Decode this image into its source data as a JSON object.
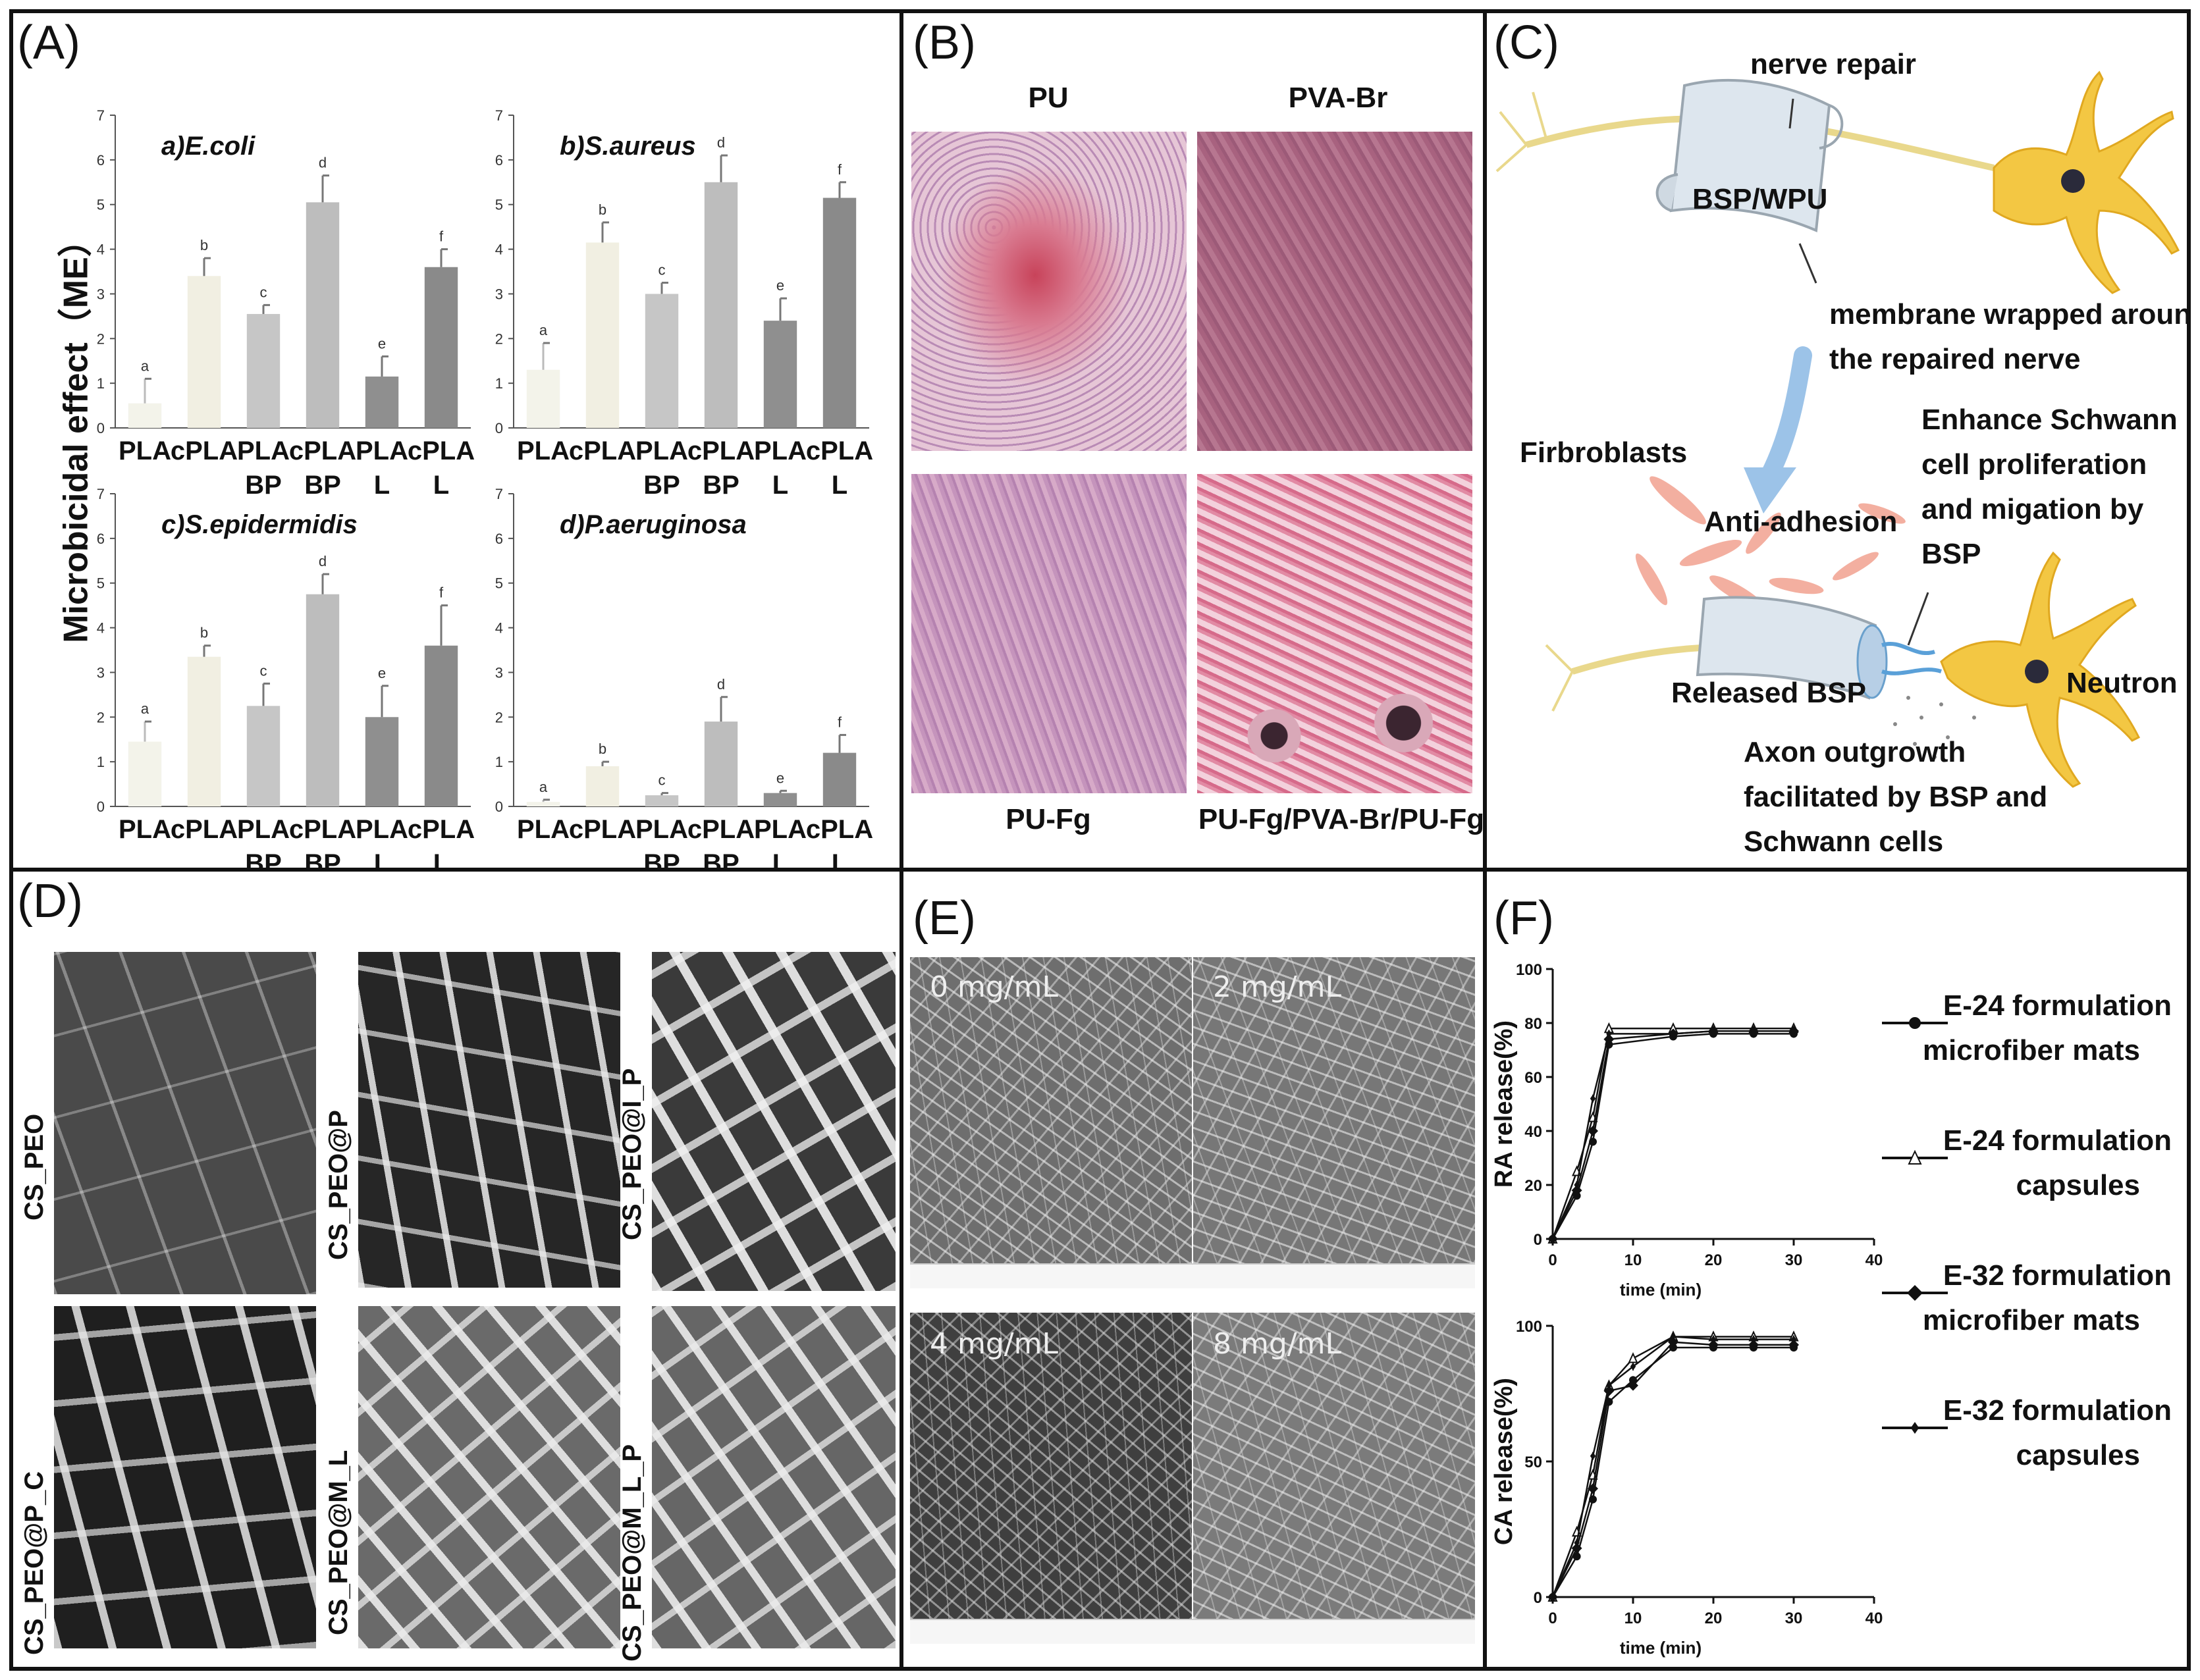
{
  "panels": {
    "A": {
      "label": "(A)",
      "ylabel": "Microbicidal effect（ME）",
      "charts": [
        {
          "title": "a)E.coli",
          "values": [
            0.55,
            3.4,
            2.55,
            5.05,
            1.15,
            3.6
          ],
          "errors": [
            0.55,
            0.4,
            0.2,
            0.6,
            0.45,
            0.4
          ],
          "letters": [
            "a",
            "b",
            "c",
            "d",
            "e",
            "f"
          ]
        },
        {
          "title": "b)S.aureus",
          "values": [
            1.3,
            4.15,
            3.0,
            5.5,
            2.4,
            5.15
          ],
          "errors": [
            0.6,
            0.45,
            0.25,
            0.6,
            0.5,
            0.35
          ],
          "letters": [
            "a",
            "b",
            "c",
            "d",
            "e",
            "f"
          ]
        },
        {
          "title": "c)S.epidermidis",
          "values": [
            1.45,
            3.35,
            2.25,
            4.75,
            2.0,
            3.6
          ],
          "errors": [
            0.45,
            0.25,
            0.5,
            0.45,
            0.7,
            0.9
          ],
          "letters": [
            "a",
            "b",
            "c",
            "d",
            "e",
            "f"
          ]
        },
        {
          "title": "d)P.aeruginosa",
          "values": [
            0.1,
            0.9,
            0.25,
            1.9,
            0.3,
            1.2
          ],
          "errors": [
            0.05,
            0.1,
            0.05,
            0.55,
            0.05,
            0.4
          ],
          "letters": [
            "a",
            "b",
            "c",
            "d",
            "e",
            "f"
          ]
        }
      ],
      "categories_top": [
        "PLA",
        "cPLA",
        "PLA",
        "cPLA",
        "PLA",
        "cPLA"
      ],
      "categories_bottom": [
        "",
        "",
        "BP",
        "BP",
        "L",
        "L"
      ],
      "yticks": [
        "0",
        "1",
        "2",
        "3",
        "4",
        "5",
        "6",
        "7"
      ]
    },
    "B": {
      "label": "(B)",
      "titles": {
        "tl": "PU",
        "tr": "PVA-Br",
        "bl": "PU-Fg",
        "br": "PU-Fg/PVA-Br/PU-Fg"
      }
    },
    "C": {
      "label": "(C)",
      "texts": {
        "nerve_repair": "nerve repair",
        "bsp_wpu": "BSP/WPU",
        "membrane1": "membrane wrapped around",
        "membrane2": "the repaired nerve",
        "fibro": "Firbroblasts",
        "anti": "Anti-adhesion",
        "enh1": "Enhance Schwann",
        "enh2": "cell proliferation",
        "enh3": "and migation by",
        "enh4": "BSP",
        "released": "Released BSP",
        "neutron": "Neutron",
        "axon1": "Axon outgrowth",
        "axon2": "facilitated by BSP and",
        "axon3": "Schwann cells"
      }
    },
    "D": {
      "label": "(D)",
      "labels": [
        "CS_PEO",
        "CS_PEO@P",
        "CS_PEO@I_P",
        "CS_PEO@P_C",
        "CS_PEO@M_L",
        "CS_PEO@M_L_P"
      ]
    },
    "E": {
      "label": "(E)",
      "conc": [
        "0 mg/mL",
        "2 mg/mL",
        "4 mg/mL",
        "8 mg/mL"
      ]
    },
    "F": {
      "label": "(F)",
      "chart_data": [
        {
          "type": "line",
          "ylabel": "RA release(%)",
          "xlabel": "time (min)",
          "xlim": [
            0,
            40
          ],
          "ylim": [
            0,
            100
          ],
          "xticks": [
            "0",
            "10",
            "20",
            "30",
            "40"
          ],
          "yticks": [
            "0",
            "20",
            "40",
            "60",
            "80",
            "100"
          ],
          "x": [
            0,
            3,
            5,
            7,
            15,
            20,
            25,
            30
          ],
          "series": [
            {
              "name": "E-24 formulation microfiber mats",
              "values": [
                0,
                16,
                36,
                72,
                75,
                76,
                76,
                76
              ]
            },
            {
              "name": "E-24 formulation capsules",
              "values": [
                0,
                25,
                45,
                78,
                78,
                78,
                78,
                78
              ]
            },
            {
              "name": "E-32 formulation microfiber mats",
              "values": [
                0,
                18,
                40,
                74,
                76,
                77,
                77,
                77
              ]
            },
            {
              "name": "E-32 formulation capsules",
              "values": [
                0,
                20,
                52,
                76,
                76,
                77,
                77,
                77
              ]
            }
          ]
        },
        {
          "type": "line",
          "ylabel": "CA release(%)",
          "xlabel": "time (min)",
          "xlim": [
            0,
            40
          ],
          "ylim": [
            0,
            100
          ],
          "xticks": [
            "0",
            "10",
            "20",
            "30",
            "40"
          ],
          "yticks": [
            "0",
            "50",
            "100"
          ],
          "x": [
            0,
            3,
            5,
            7,
            10,
            15,
            20,
            25,
            30
          ],
          "series": [
            {
              "name": "E-24 formulation microfiber mats",
              "values": [
                0,
                15,
                36,
                72,
                80,
                92,
                92,
                92,
                92
              ]
            },
            {
              "name": "E-24 formulation capsules",
              "values": [
                0,
                24,
                45,
                78,
                88,
                96,
                96,
                96,
                96
              ]
            },
            {
              "name": "E-32 formulation microfiber mats",
              "values": [
                0,
                18,
                40,
                76,
                78,
                94,
                93,
                93,
                93
              ]
            },
            {
              "name": "E-32 formulation capsules",
              "values": [
                0,
                20,
                52,
                78,
                85,
                96,
                95,
                95,
                95
              ]
            }
          ]
        }
      ],
      "legend": [
        {
          "line1": "E-24 formulation",
          "line2": "microfiber mats"
        },
        {
          "line1": "E-24 formulation",
          "line2": "capsules"
        },
        {
          "line1": "E-32 formulation",
          "line2": "microfiber mats"
        },
        {
          "line1": "E-32 formulation",
          "line2": "capsules"
        }
      ]
    }
  }
}
